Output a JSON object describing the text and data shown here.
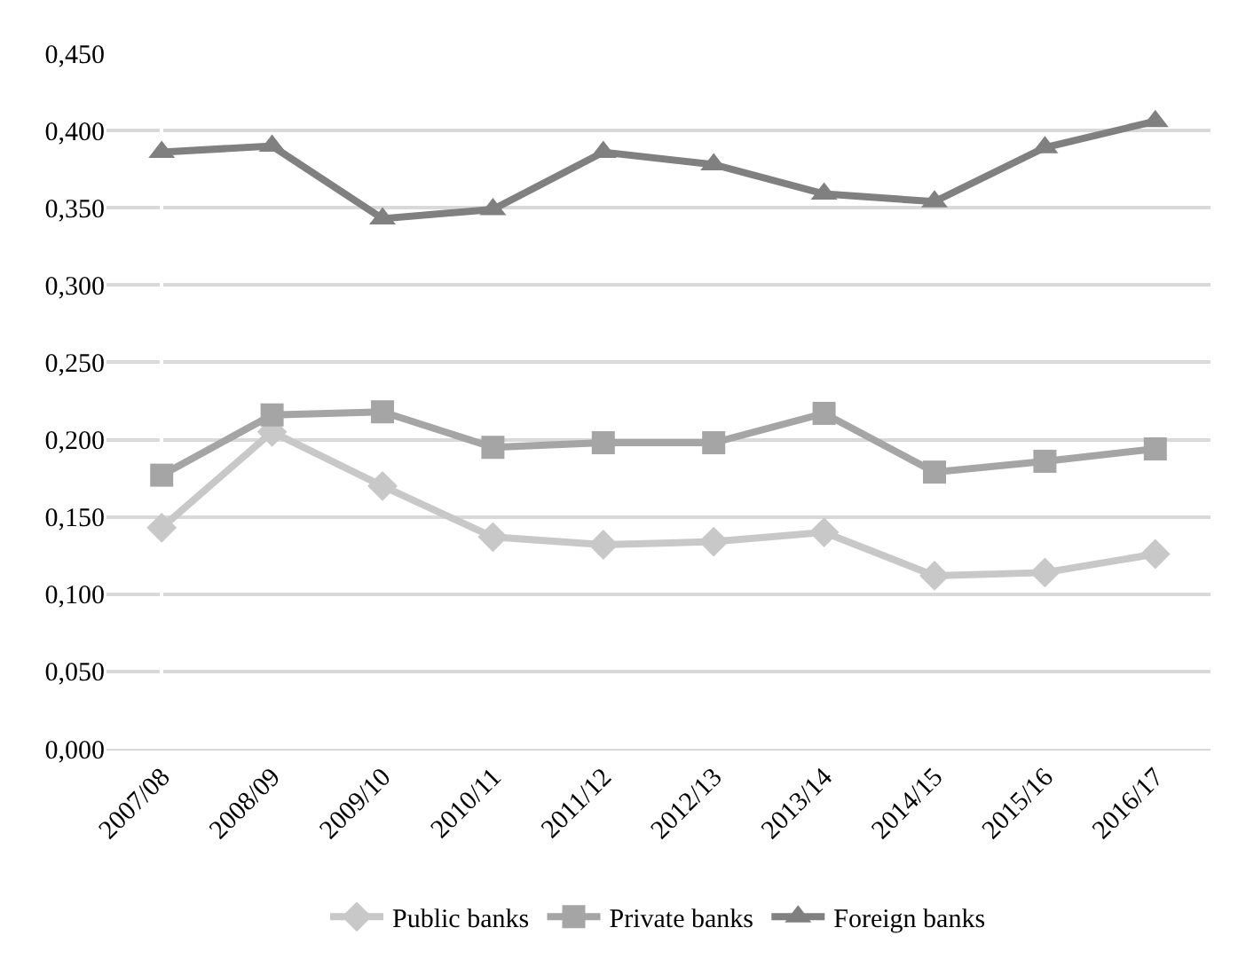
{
  "chart_data": {
    "type": "line",
    "categories": [
      "2007/08",
      "2008/09",
      "2009/10",
      "2010/11",
      "2011/12",
      "2012/13",
      "2013/14",
      "2014/15",
      "2015/16",
      "2016/17"
    ],
    "series": [
      {
        "name": "Public banks",
        "color": "#c8c8c8",
        "marker": "diamond",
        "values": [
          0.143,
          0.205,
          0.17,
          0.137,
          0.132,
          0.134,
          0.14,
          0.112,
          0.114,
          0.126
        ]
      },
      {
        "name": "Private banks",
        "color": "#a5a5a5",
        "marker": "square",
        "values": [
          0.177,
          0.216,
          0.218,
          0.195,
          0.198,
          0.198,
          0.217,
          0.179,
          0.186,
          0.194
        ]
      },
      {
        "name": "Foreign banks",
        "color": "#808080",
        "marker": "triangle",
        "values": [
          0.386,
          0.39,
          0.343,
          0.349,
          0.386,
          0.378,
          0.359,
          0.354,
          0.389,
          0.406
        ]
      }
    ],
    "ylim": [
      0,
      0.45
    ],
    "yticks": [
      {
        "value": 0,
        "label": "0,000"
      },
      {
        "value": 0.05,
        "label": "0,050"
      },
      {
        "value": 0.1,
        "label": "0,100"
      },
      {
        "value": 0.15,
        "label": "0,150"
      },
      {
        "value": 0.2,
        "label": "0,200"
      },
      {
        "value": 0.25,
        "label": "0,250"
      },
      {
        "value": 0.3,
        "label": "0,300"
      },
      {
        "value": 0.35,
        "label": "0,350"
      },
      {
        "value": 0.4,
        "label": "0,400"
      },
      {
        "value": 0.45,
        "label": "0,450"
      }
    ],
    "grid": "y",
    "legend": "bottom",
    "line_style": "solid"
  }
}
